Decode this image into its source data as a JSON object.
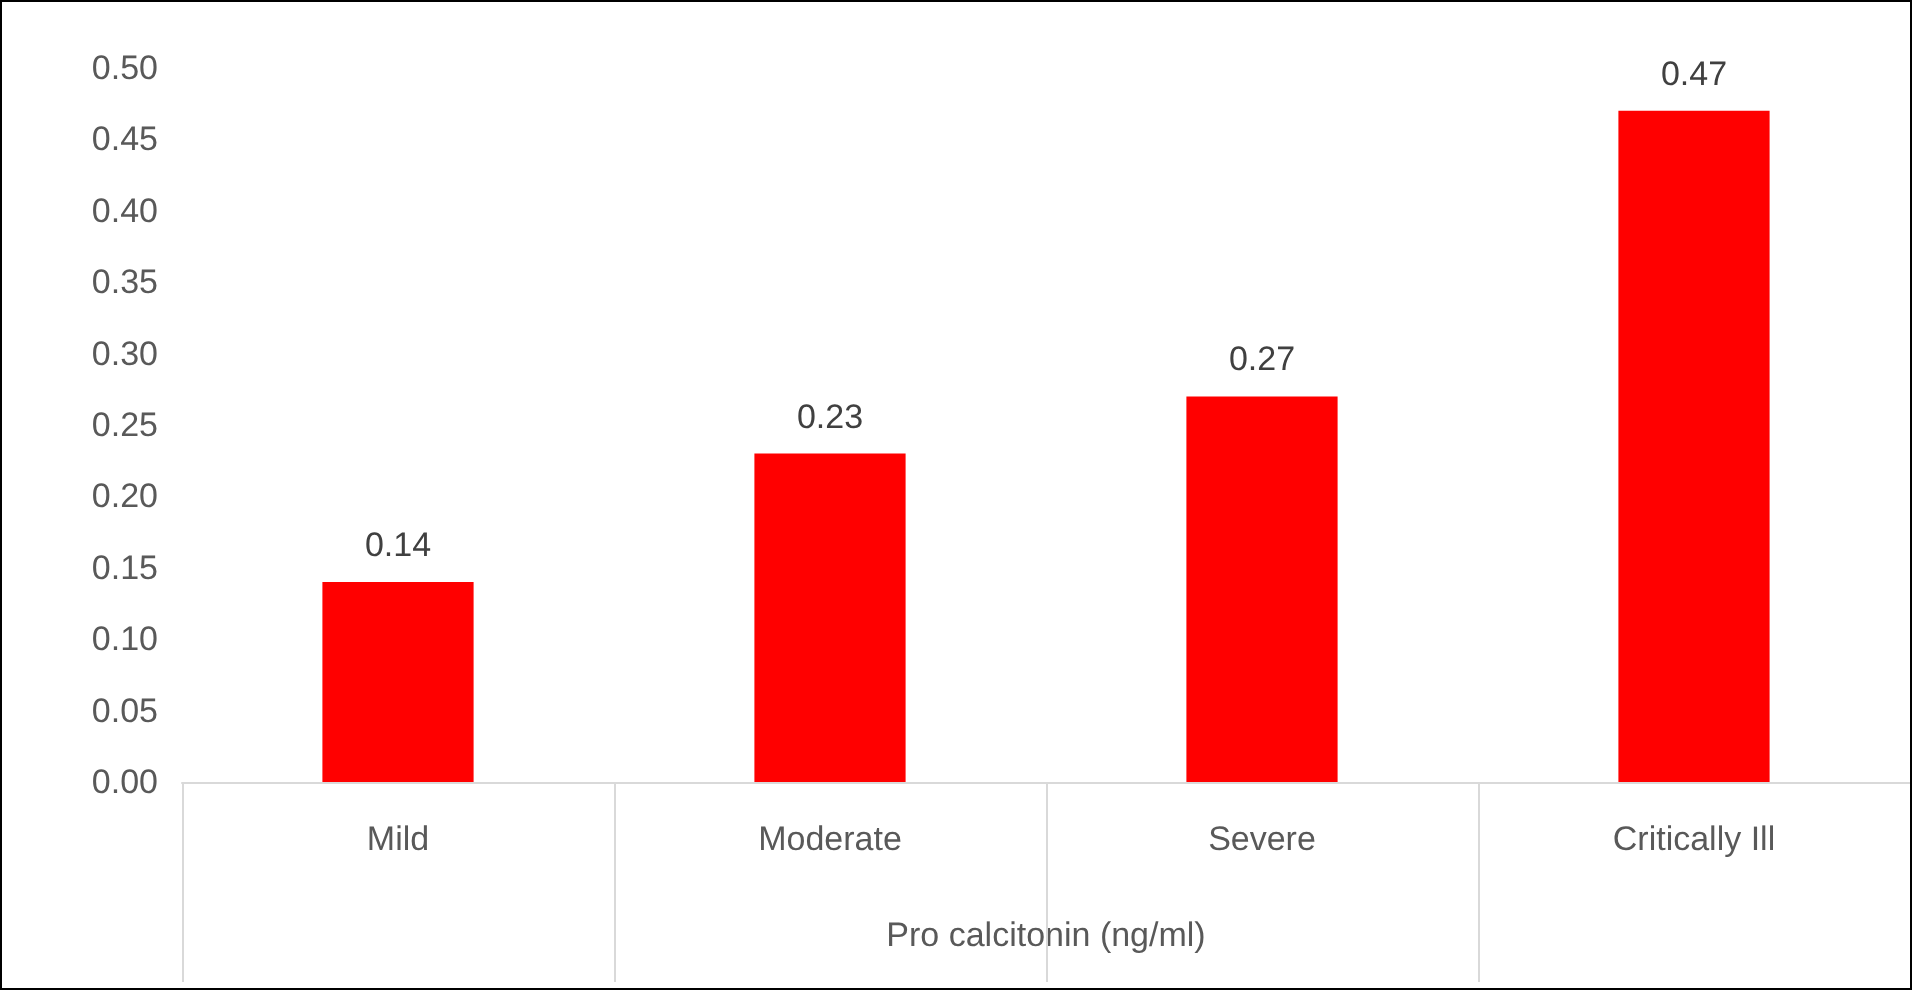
{
  "chart_data": {
    "type": "bar",
    "xlabel": "Pro calcitonin (ng/ml)",
    "categories": [
      "Mild",
      "Moderate",
      "Severe",
      "Critically Ill"
    ],
    "values": [
      0.14,
      0.23,
      0.27,
      0.47
    ],
    "color": "#ff0000",
    "ylim": [
      0,
      0.5
    ],
    "yticks": [
      {
        "value": 0,
        "label": "0.00"
      },
      {
        "value": 0.05,
        "label": "0.05"
      },
      {
        "value": 0.1,
        "label": "0.10"
      },
      {
        "value": 0.15,
        "label": "0.15"
      },
      {
        "value": 0.2,
        "label": "0.20"
      },
      {
        "value": 0.25,
        "label": "0.25"
      },
      {
        "value": 0.3,
        "label": "0.30"
      },
      {
        "value": 0.35,
        "label": "0.35"
      },
      {
        "value": 0.4,
        "label": "0.40"
      },
      {
        "value": 0.45,
        "label": "0.45"
      },
      {
        "value": 0.5,
        "label": "0.50"
      }
    ],
    "grid": false,
    "data_labels": true
  }
}
